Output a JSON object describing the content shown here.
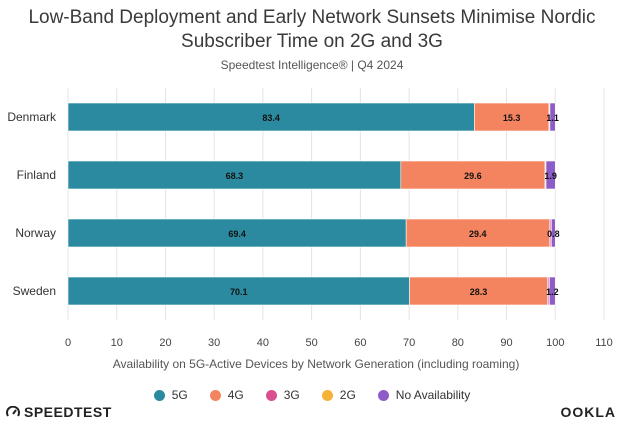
{
  "header": {
    "title_line1": "Low-Band Deployment and Early Network Sunsets Minimise Nordic",
    "title_line2": "Subscriber Time on 2G and 3G",
    "subtitle": "Speedtest Intelligence® | Q4 2024"
  },
  "chart_data": {
    "type": "bar",
    "orientation": "horizontal",
    "stacked": true,
    "title": "Low-Band Deployment and Early Network Sunsets Minimise Nordic Subscriber Time on 2G and 3G",
    "subtitle": "Speedtest Intelligence® | Q4 2024",
    "xlabel": "Availability on 5G-Active Devices by Network Generation (including roaming)",
    "ylabel": "",
    "xlim": [
      0,
      110
    ],
    "xticks": [
      0,
      10,
      20,
      30,
      40,
      50,
      60,
      70,
      80,
      90,
      100,
      110
    ],
    "grid": true,
    "legend_position": "bottom",
    "categories": [
      "Denmark",
      "Finland",
      "Norway",
      "Sweden"
    ],
    "series": [
      {
        "name": "5G",
        "color": "#2b8a9f",
        "values": [
          83.4,
          68.3,
          69.4,
          70.1
        ],
        "labels": [
          "83.4",
          "68.3",
          "69.4",
          "70.1"
        ]
      },
      {
        "name": "4G",
        "color": "#f4845f",
        "values": [
          15.3,
          29.6,
          29.4,
          28.3
        ],
        "labels": [
          "15.3",
          "29.6",
          "29.4",
          "28.3"
        ]
      },
      {
        "name": "3G",
        "color": "#d94f8f",
        "values": [
          0.1,
          0.1,
          0.3,
          0.3
        ],
        "labels": [
          "",
          "",
          "",
          ""
        ]
      },
      {
        "name": "2G",
        "color": "#f5b335",
        "values": [
          0.1,
          0.1,
          0.1,
          0.1
        ],
        "labels": [
          "",
          "",
          "",
          ""
        ]
      },
      {
        "name": "No Availability",
        "color": "#8e5cc6",
        "values": [
          1.1,
          1.9,
          0.8,
          1.2
        ],
        "labels": [
          "1.1",
          "1.9",
          "0.8",
          "1.2"
        ]
      }
    ]
  },
  "footer": {
    "brand_left": "SPEEDTEST",
    "brand_right": "OOKLA",
    "brand_icon": "speedometer-icon"
  }
}
